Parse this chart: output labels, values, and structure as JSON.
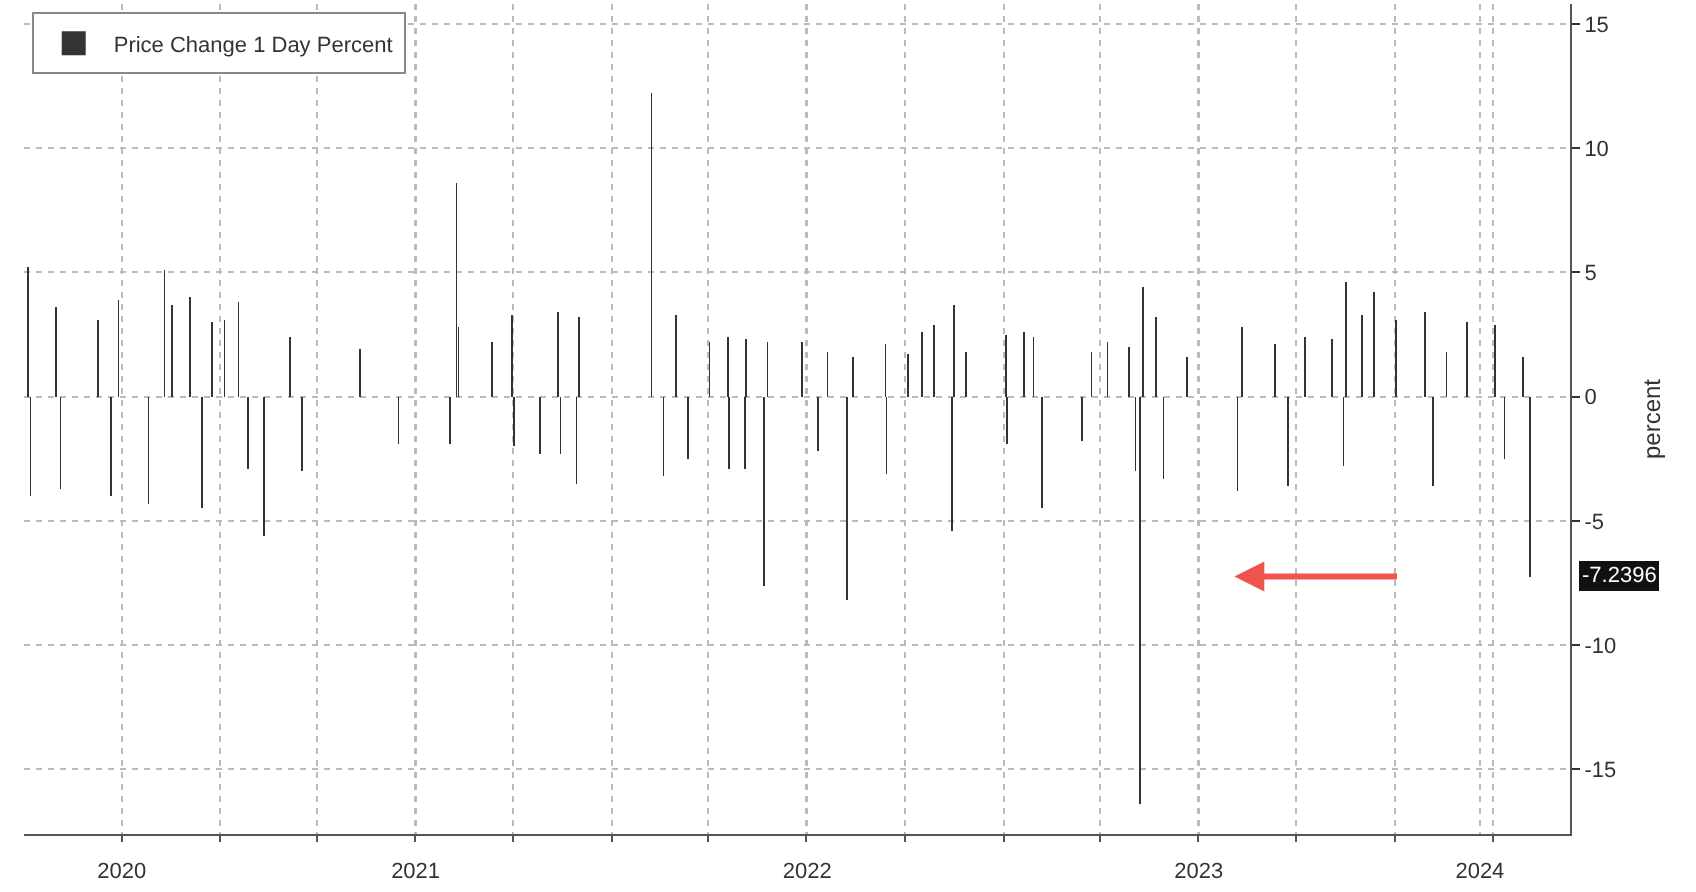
{
  "chart_data": {
    "type": "bar",
    "x": [
      "2020-07-06",
      "2020-07-08",
      "2020-08-01",
      "2020-08-05",
      "2020-09-09",
      "2020-09-21",
      "2020-09-28",
      "2020-10-26",
      "2020-11-10",
      "2020-11-17",
      "2020-12-04",
      "2020-12-15",
      "2020-12-24",
      "2021-01-05",
      "2021-01-18",
      "2021-01-27",
      "2021-02-11",
      "2021-03-07",
      "2021-03-18",
      "2021-05-11",
      "2021-06-16",
      "2021-08-03",
      "2021-08-09",
      "2021-08-11",
      "2021-09-11",
      "2021-09-30",
      "2021-10-02",
      "2021-10-26",
      "2021-11-12",
      "2021-11-14",
      "2021-11-29",
      "2021-12-01",
      "2022-02-07",
      "2022-02-18",
      "2022-03-02",
      "2022-03-13",
      "2022-04-02",
      "2022-04-19",
      "2022-04-20",
      "2022-05-05",
      "2022-05-06",
      "2022-05-23",
      "2022-05-26",
      "2022-06-27",
      "2022-07-12",
      "2022-07-21",
      "2022-08-08",
      "2022-08-14",
      "2022-09-13",
      "2022-09-14",
      "2022-10-04",
      "2022-10-17",
      "2022-10-28",
      "2022-11-14",
      "2022-11-16",
      "2022-11-27",
      "2023-01-03",
      "2023-01-04",
      "2023-01-20",
      "2023-01-29",
      "2023-02-06",
      "2023-03-15",
      "2023-03-24",
      "2023-04-08",
      "2023-04-28",
      "2023-05-04",
      "2023-05-08",
      "2023-05-11",
      "2023-05-23",
      "2023-05-30",
      "2023-06-21",
      "2023-08-07",
      "2023-08-11",
      "2023-09-11",
      "2023-09-23",
      "2023-10-09",
      "2023-11-03",
      "2023-11-14",
      "2023-11-16",
      "2023-12-01",
      "2023-12-12",
      "2024-01-02",
      "2024-01-29",
      "2024-02-05",
      "2024-02-18",
      "2024-03-08",
      "2024-04-03",
      "2024-04-12",
      "2024-04-29",
      "2024-05-06"
    ],
    "series": [
      {
        "name": "Price Change 1 Day Percent",
        "color": "#333333",
        "values": [
          5.2,
          -4.0,
          3.6,
          -3.7,
          3.1,
          -4.0,
          3.9,
          -4.3,
          5.1,
          3.7,
          4.0,
          -4.5,
          3.0,
          3.1,
          3.8,
          -2.9,
          -5.6,
          2.4,
          -3.0,
          1.9,
          -1.9,
          -1.9,
          8.6,
          2.8,
          2.2,
          3.3,
          -2.0,
          -2.3,
          3.4,
          -2.3,
          -3.5,
          3.2,
          12.2,
          -3.2,
          3.3,
          -2.5,
          2.2,
          2.4,
          -2.9,
          -2.9,
          2.3,
          -7.6,
          2.2,
          2.2,
          -2.2,
          1.8,
          -8.2,
          1.6,
          2.1,
          -3.1,
          1.7,
          2.6,
          2.9,
          -5.4,
          3.7,
          1.8,
          2.5,
          -1.9,
          2.6,
          2.4,
          -4.5,
          -1.8,
          1.8,
          2.2,
          2.0,
          -3.0,
          -16.4,
          4.4,
          3.2,
          -3.3,
          1.6,
          -3.8,
          2.8,
          2.1,
          -3.6,
          2.4,
          2.3,
          -2.8,
          4.6,
          3.3,
          4.2,
          3.1,
          3.4,
          -3.6,
          1.8,
          3.0,
          2.9,
          -2.5,
          1.6,
          -7.2396
        ]
      }
    ],
    "xlim": [
      "2020-07-02",
      "2024-06-12"
    ],
    "xticks": [
      {
        "value": "2020-10-01",
        "label": "2020"
      },
      {
        "value": "2021-07-02",
        "label": "2021"
      },
      {
        "value": "2022-07-02",
        "label": "2022"
      },
      {
        "value": "2023-07-02",
        "label": "2023"
      },
      {
        "value": "2024-03-20",
        "label": "2024"
      }
    ],
    "ylim": [
      -17.6,
      15.8
    ],
    "yticks": [
      -15,
      -10,
      -5,
      0,
      5,
      10,
      15
    ],
    "ylabel": "percent",
    "annotations": [
      {
        "text": "-7.2396",
        "x": "2024-05-06",
        "y": -7.2396
      }
    ],
    "grid": true,
    "legend": "top left"
  }
}
